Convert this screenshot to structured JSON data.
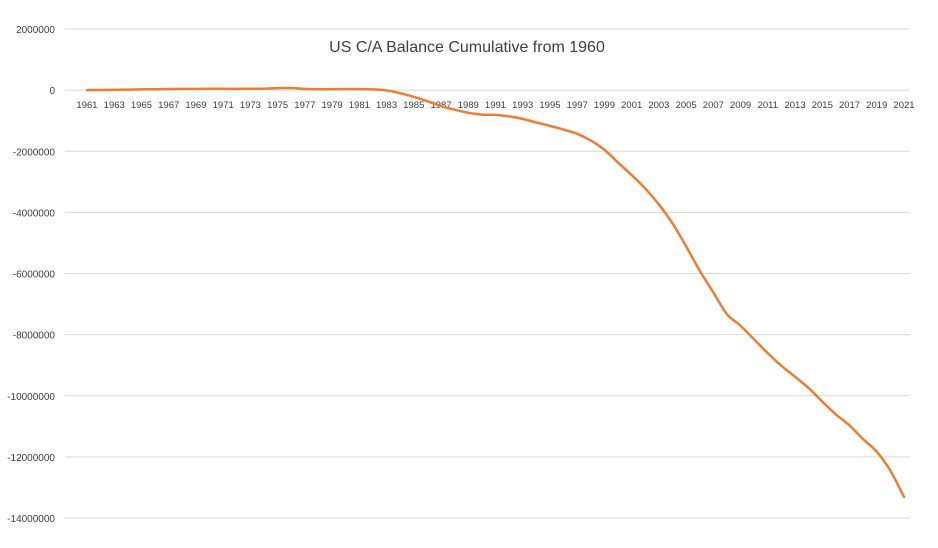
{
  "chart_data": {
    "type": "line",
    "title": "US C/A Balance Cumulative from 1960",
    "xlabel": "",
    "ylabel": "",
    "ylim": [
      -14000000,
      2000000
    ],
    "yticks": [
      2000000,
      0,
      -2000000,
      -4000000,
      -6000000,
      -8000000,
      -10000000,
      -12000000,
      -14000000
    ],
    "x": [
      1961,
      1962,
      1963,
      1964,
      1965,
      1966,
      1967,
      1968,
      1969,
      1970,
      1971,
      1972,
      1973,
      1974,
      1975,
      1976,
      1977,
      1978,
      1979,
      1980,
      1981,
      1982,
      1983,
      1984,
      1985,
      1986,
      1987,
      1988,
      1989,
      1990,
      1991,
      1992,
      1993,
      1994,
      1995,
      1996,
      1997,
      1998,
      1999,
      2000,
      2001,
      2002,
      2003,
      2004,
      2005,
      2006,
      2007,
      2008,
      2009,
      2010,
      2011,
      2012,
      2013,
      2014,
      2015,
      2016,
      2017,
      2018,
      2019,
      2020,
      2021
    ],
    "xticks": [
      1961,
      1963,
      1965,
      1967,
      1969,
      1971,
      1973,
      1975,
      1977,
      1979,
      1981,
      1983,
      1985,
      1987,
      1989,
      1991,
      1993,
      1995,
      1997,
      1999,
      2001,
      2003,
      2005,
      2007,
      2009,
      2011,
      2013,
      2015,
      2017,
      2019,
      2021
    ],
    "grid": true,
    "legend": "none",
    "series": [
      {
        "color": "#ed7d31",
        "values": [
          0,
          5000,
          10000,
          15000,
          25000,
          30000,
          35000,
          40000,
          42000,
          44000,
          44000,
          42000,
          45000,
          46000,
          65000,
          68000,
          40000,
          30000,
          32000,
          35000,
          35000,
          25000,
          -10000,
          -100000,
          -220000,
          -360000,
          -520000,
          -640000,
          -740000,
          -800000,
          -810000,
          -860000,
          -940000,
          -1060000,
          -1170000,
          -1290000,
          -1430000,
          -1650000,
          -1950000,
          -2370000,
          -2780000,
          -3220000,
          -3740000,
          -4360000,
          -5110000,
          -5910000,
          -6620000,
          -7330000,
          -7710000,
          -8160000,
          -8610000,
          -9020000,
          -9380000,
          -9750000,
          -10190000,
          -10610000,
          -10970000,
          -11420000,
          -11830000,
          -12450000,
          -13310000
        ]
      }
    ]
  }
}
